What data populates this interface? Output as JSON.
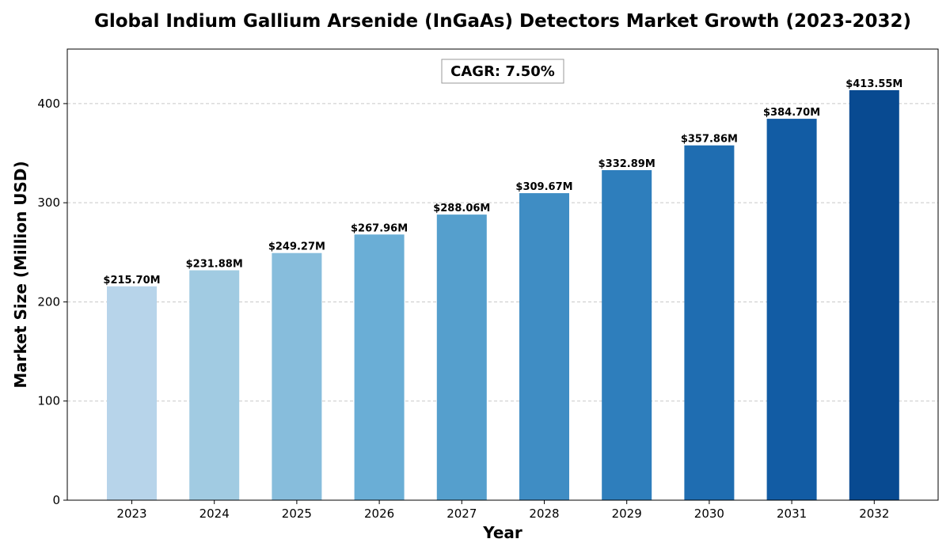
{
  "chart_data": {
    "type": "bar",
    "title": "Global Indium Gallium Arsenide (InGaAs) Detectors Market Growth (2023-2032)",
    "xlabel": "Year",
    "ylabel": "Market Size (Million USD)",
    "categories": [
      "2023",
      "2024",
      "2025",
      "2026",
      "2027",
      "2028",
      "2029",
      "2030",
      "2031",
      "2032"
    ],
    "values": [
      215.7,
      231.88,
      249.27,
      267.96,
      288.06,
      309.67,
      332.89,
      357.86,
      384.7,
      413.55
    ],
    "data_labels": [
      "$215.70M",
      "$231.88M",
      "$249.27M",
      "$267.96M",
      "$288.06M",
      "$309.67M",
      "$332.89M",
      "$357.86M",
      "$384.70M",
      "$413.55M"
    ],
    "ylim": [
      0,
      455
    ],
    "yticks": [
      0,
      100,
      200,
      300,
      400
    ],
    "grid": "y-dashed",
    "annotation": "CAGR: 7.50%",
    "colors": [
      "#b7d4ea",
      "#a1cbe2",
      "#87bddc",
      "#6aaed6",
      "#559fcd",
      "#3f8dc4",
      "#2e7ebc",
      "#1f6db1",
      "#125ca4",
      "#084a91"
    ]
  }
}
